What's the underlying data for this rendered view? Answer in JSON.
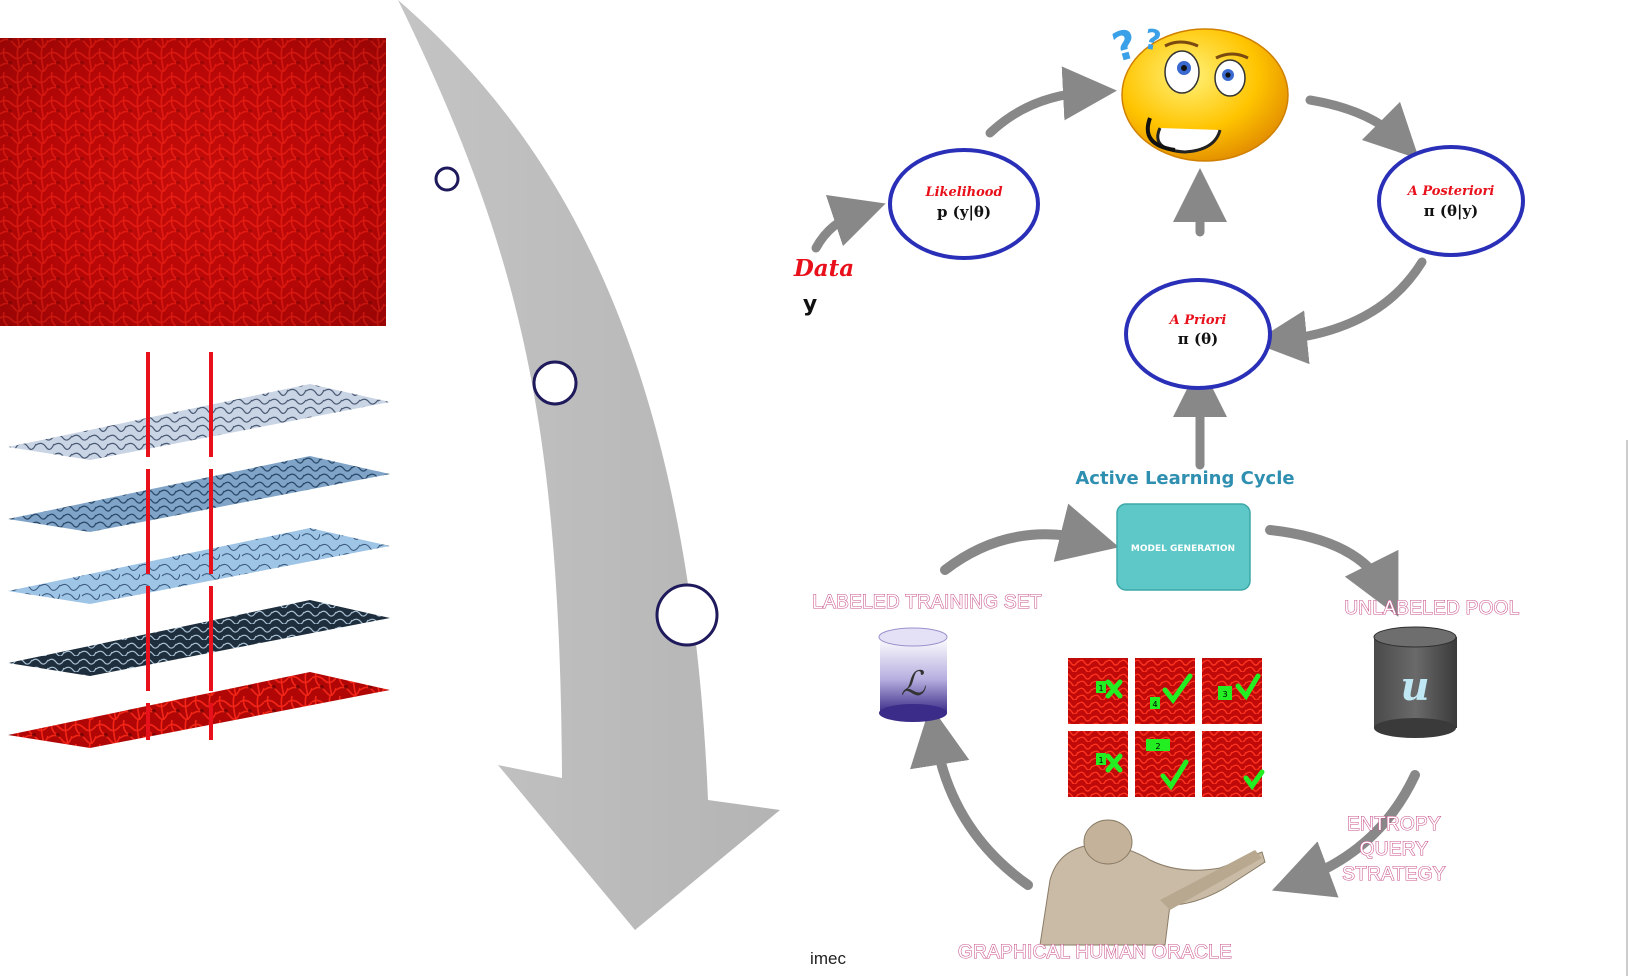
{
  "bayes_cycle": {
    "data_label": "Data",
    "data_symbol": "y",
    "likelihood_title": "Likelihood",
    "likelihood_formula": "p (y|θ)",
    "posterior_title": "A Posteriori",
    "posterior_formula": "π (θ|y)",
    "prior_title": "A Priori",
    "prior_formula": "π (θ)"
  },
  "active_learning": {
    "cycle_title": "Active Learning Cycle",
    "model_box": "MODEL GENERATION",
    "labeled_set": "LABELED TRAINING SET",
    "labeled_symbol": "ℒ",
    "unlabeled_pool": "UNLABELED POOL",
    "unlabeled_symbol": "u",
    "entropy_lines": [
      "ENTROPY",
      "QUERY",
      "STRATEGY"
    ],
    "oracle": "GRAPHICAL HUMAN ORACLE",
    "tile_badges": [
      "1",
      "4",
      "3",
      "1",
      "2",
      ""
    ]
  },
  "footer": {
    "logo": "imec"
  },
  "colors": {
    "circle_stroke": "#2a2fb8",
    "red_label": "#e8101a",
    "teal_title": "#2e8fb0",
    "model_box_fill": "#5ec8c8",
    "arrow_gray": "#888888"
  }
}
